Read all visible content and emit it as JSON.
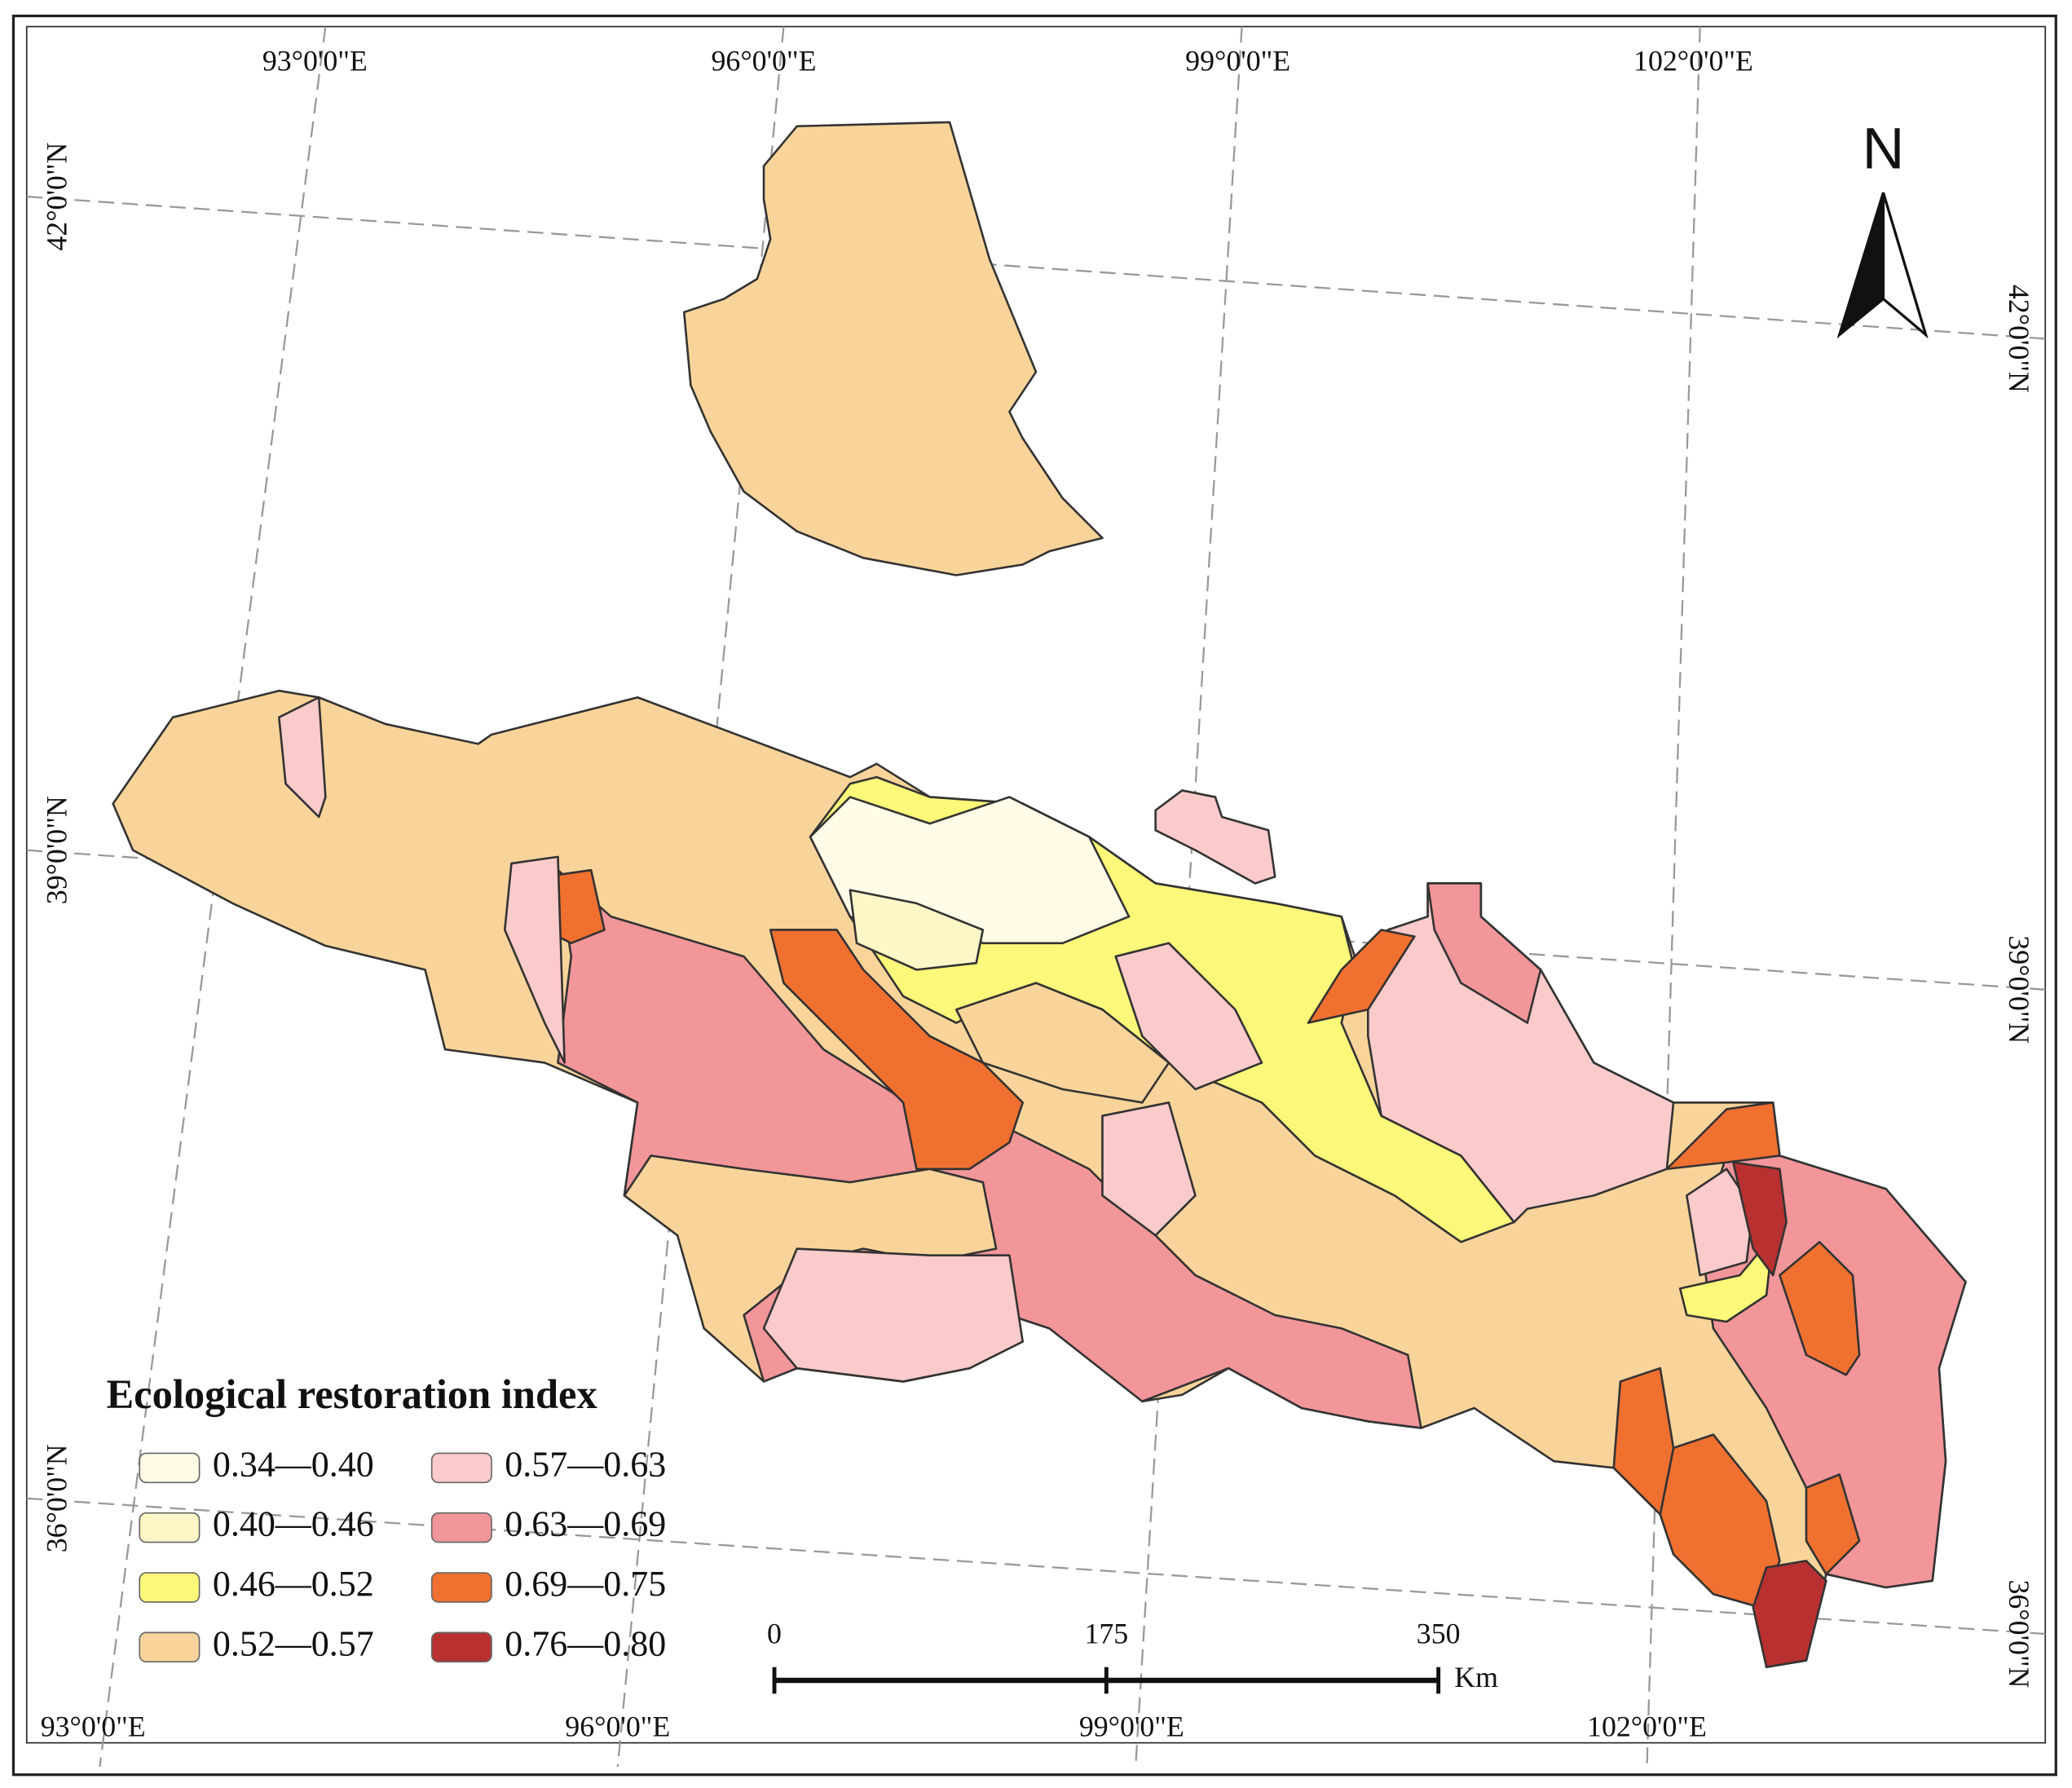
{
  "map": {
    "longitude_labels_top": [
      "93°0'0\"E",
      "96°0'0\"E",
      "99°0'0\"E",
      "102°0'0\"E"
    ],
    "longitude_labels_bottom": [
      "93°0'0\"E",
      "96°0'0\"E",
      "99°0'0\"E",
      "102°0'0\"E"
    ],
    "latitude_labels_left": [
      "42°0'0\"N",
      "39°0'0\"N",
      "36°0'0\"N"
    ],
    "latitude_labels_right": [
      "42°0'0\"N",
      "39°0'0\"N",
      "36°0'0\"N"
    ],
    "north_arrow": "N",
    "legend": {
      "title": "Ecological restoration index",
      "classes": [
        {
          "label": "0.34—0.40",
          "color": "#fffbe6"
        },
        {
          "label": "0.40—0.46",
          "color": "#fdf6c6"
        },
        {
          "label": "0.46—0.52",
          "color": "#fbf87a"
        },
        {
          "label": "0.52—0.57",
          "color": "#f9d49a"
        },
        {
          "label": "0.57—0.63",
          "color": "#fbcaca"
        },
        {
          "label": "0.63—0.69",
          "color": "#f2969a"
        },
        {
          "label": "0.69—0.75",
          "color": "#f07030"
        },
        {
          "label": "0.76—0.80",
          "color": "#b83030"
        }
      ]
    },
    "scale_bar": {
      "ticks": [
        0,
        175,
        350
      ],
      "unit": "Km"
    }
  }
}
